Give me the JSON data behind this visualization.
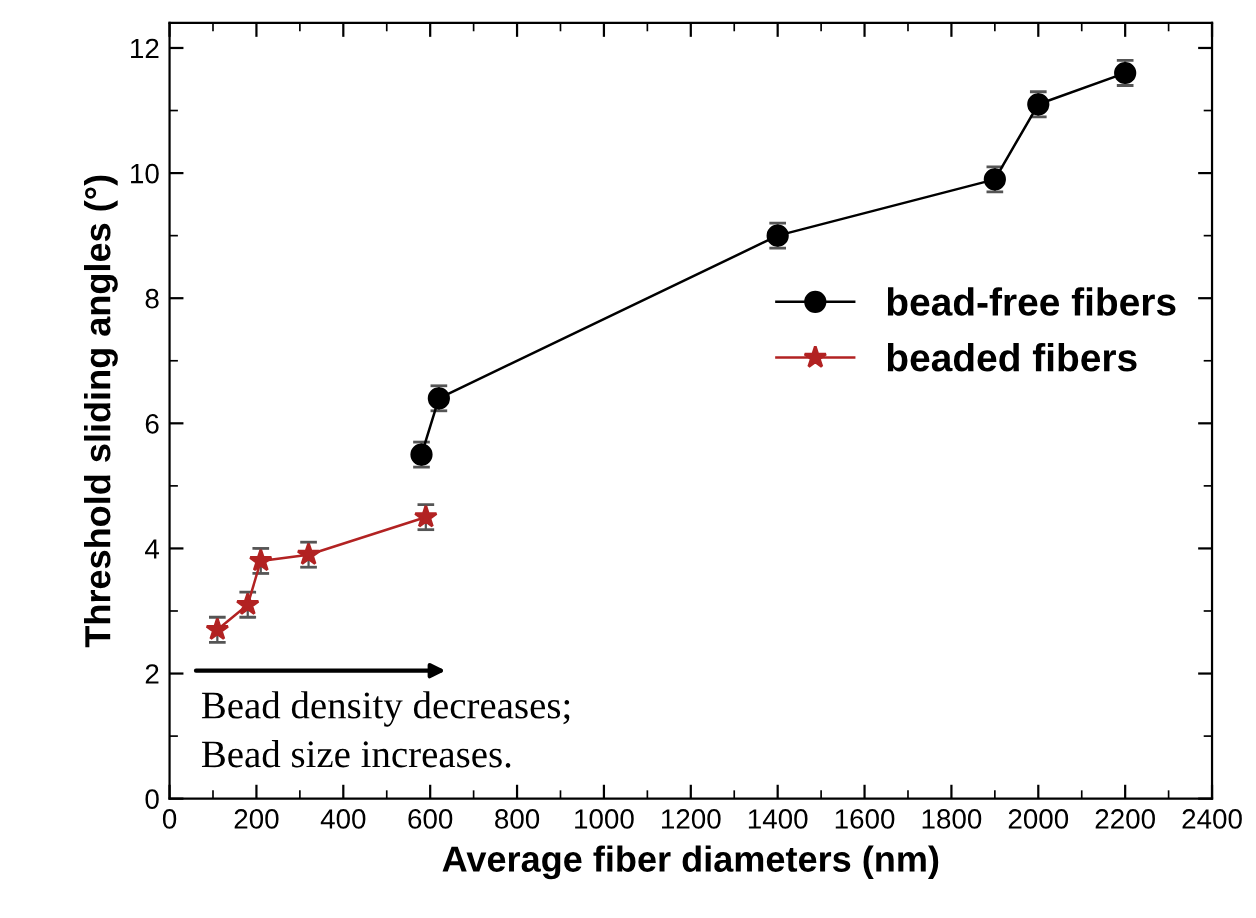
{
  "chart_data": {
    "type": "line",
    "xlabel": "Average fiber diameters (nm)",
    "ylabel": "Threshold sliding angles (°)",
    "xlim": [
      0,
      2400
    ],
    "xticks": [
      0,
      200,
      400,
      600,
      800,
      1000,
      1200,
      1400,
      1600,
      1800,
      2000,
      2200,
      2400
    ],
    "ylim": [
      0,
      12.4
    ],
    "yticks": [
      0,
      2,
      4,
      6,
      8,
      10,
      12
    ],
    "grid": false,
    "legend": "right",
    "series": [
      {
        "name": "bead-free fibers",
        "color": "#000000",
        "marker": "circle",
        "x": [
          580,
          620,
          1400,
          1900,
          2000,
          2200
        ],
        "values": [
          5.5,
          6.4,
          9.0,
          9.9,
          11.1,
          11.6
        ],
        "errors": [
          0.2,
          0.2,
          0.2,
          0.2,
          0.2,
          0.2
        ]
      },
      {
        "name": "beaded fibers",
        "color": "#b22222",
        "marker": "star",
        "x": [
          110,
          180,
          210,
          320,
          590
        ],
        "values": [
          2.7,
          3.1,
          3.8,
          3.9,
          4.5
        ],
        "errors": [
          0.2,
          0.2,
          0.2,
          0.2,
          0.2
        ]
      }
    ],
    "annotations": [
      "Bead density decreases;\nBead size increases."
    ]
  }
}
